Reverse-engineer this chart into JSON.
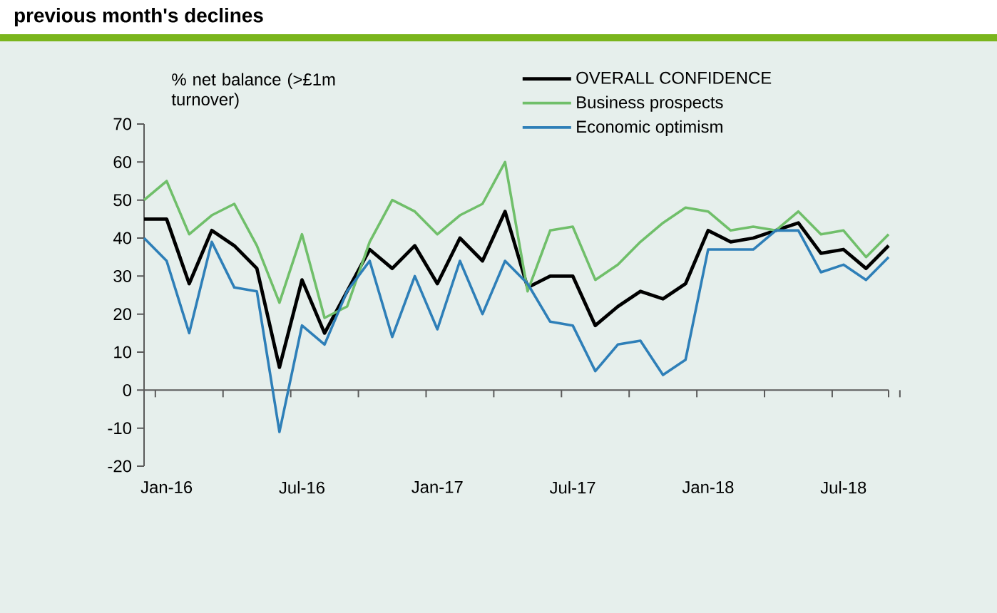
{
  "chart_data": {
    "type": "line",
    "title": "previous month's declines",
    "ylabel": "% net balance (>£1m turnover)",
    "categories": [
      null,
      "Jan-16",
      null,
      null,
      null,
      null,
      null,
      "Jul-16",
      null,
      null,
      null,
      null,
      null,
      "Jan-17",
      null,
      null,
      null,
      null,
      null,
      "Jul-17",
      null,
      null,
      null,
      null,
      null,
      "Jan-18",
      null,
      null,
      null,
      null,
      null,
      "Jul-18",
      null,
      null
    ],
    "series": [
      {
        "name": "OVERALL CONFIDENCE",
        "color": "#000000",
        "values": [
          45,
          45,
          28,
          42,
          38,
          32,
          6,
          29,
          15,
          26,
          37,
          32,
          38,
          28,
          40,
          34,
          47,
          27,
          30,
          30,
          17,
          22,
          26,
          24,
          28,
          42,
          39,
          40,
          42,
          44,
          36,
          37,
          32,
          38
        ]
      },
      {
        "name": "Business prospects",
        "color": "#70bf6a",
        "values": [
          50,
          55,
          41,
          46,
          49,
          38,
          23,
          41,
          19,
          22,
          39,
          50,
          47,
          41,
          46,
          49,
          60,
          26,
          42,
          43,
          29,
          33,
          39,
          44,
          48,
          47,
          42,
          43,
          42,
          47,
          41,
          42,
          35,
          41
        ]
      },
      {
        "name": "Economic optimism",
        "color": "#2e7fb8",
        "values": [
          40,
          34,
          15,
          39,
          27,
          26,
          -11,
          17,
          12,
          26,
          34,
          14,
          30,
          16,
          34,
          20,
          34,
          28,
          18,
          17,
          5,
          12,
          13,
          4,
          8,
          37,
          37,
          37,
          42,
          42,
          31,
          33,
          29,
          35
        ]
      }
    ],
    "ylim": [
      -20,
      70
    ],
    "yticks": [
      -20,
      -10,
      0,
      10,
      20,
      30,
      40,
      50,
      60,
      70
    ],
    "ref_lines": [
      {
        "axis": "y",
        "value": 0,
        "color": "#5a5a5a"
      }
    ],
    "legend": "top right",
    "marker": "none",
    "line_style": "solid"
  }
}
